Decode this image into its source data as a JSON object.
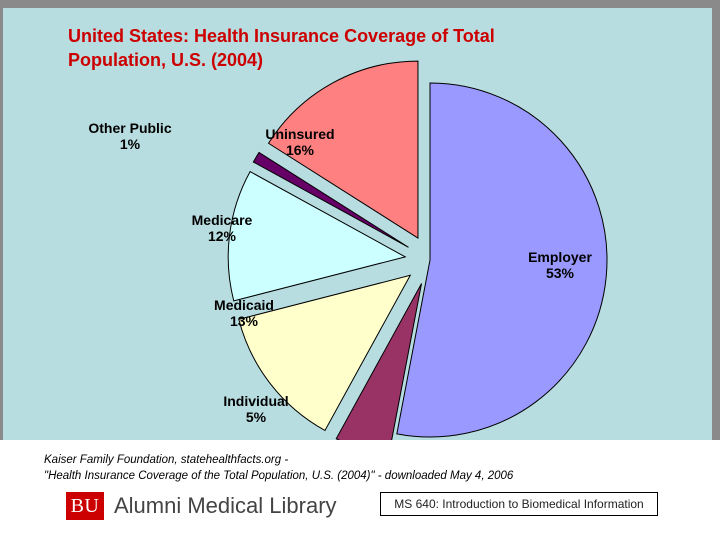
{
  "slide": {
    "title_line1": "United States: Health Insurance Coverage of Total",
    "title_line2": "Population, U.S. (2004)"
  },
  "chart_data": {
    "type": "pie",
    "exploded": true,
    "title": "United States: Health Insurance Coverage of Total Population, U.S. (2004)",
    "slices": [
      {
        "label": "Employer",
        "value": 53,
        "display": "53%",
        "color": "#9999ff"
      },
      {
        "label": "Individual",
        "value": 5,
        "display": "5%",
        "color": "#993366"
      },
      {
        "label": "Medicaid",
        "value": 13,
        "display": "13%",
        "color": "#ffffcc"
      },
      {
        "label": "Medicare",
        "value": 12,
        "display": "12%",
        "color": "#ccffff"
      },
      {
        "label": "Other Public",
        "value": 1,
        "display": "1%",
        "color": "#660066"
      },
      {
        "label": "Uninsured",
        "value": 16,
        "display": "16%",
        "color": "#ff8080"
      }
    ]
  },
  "footer": {
    "source_line1": "Kaiser Family Foundation, statehealthfacts.org -",
    "source_line2": "\"Health Insurance Coverage of the Total Population, U.S. (2004)\" - downloaded May 4, 2006",
    "logo_mark": "BU",
    "library_name": "Alumni Medical Library",
    "course_label": "MS 640: Introduction to Biomedical Information"
  },
  "colors": {
    "background": "#b8dde0",
    "title": "#cc0000",
    "footer_bg": "#ffffff"
  }
}
